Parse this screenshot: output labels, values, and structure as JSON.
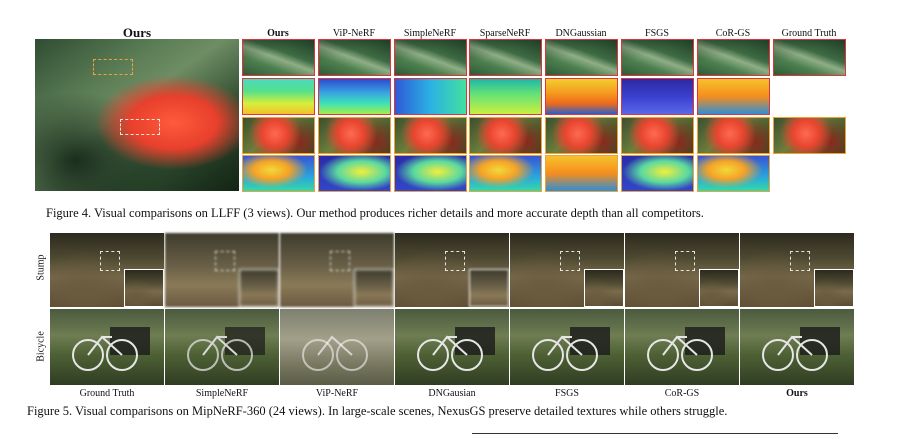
{
  "figure4": {
    "ours_large_label": "Ours",
    "columns": [
      "Ours",
      "ViP-NeRF",
      "SimpleNeRF",
      "SparseNeRF",
      "DNGaussian",
      "FSGS",
      "CoR-GS",
      "Ground Truth"
    ],
    "caption": "Figure 4. Visual comparisons on LLFF (3 views). Our method produces richer details and more accurate depth than all competitors."
  },
  "figure5": {
    "row_labels": [
      "Stump",
      "Bicycle"
    ],
    "columns": [
      "Ground Truth",
      "SimpleNeRF",
      "ViP-NeRF",
      "DNGausian",
      "FSGS",
      "CoR-GS",
      "Ours"
    ],
    "caption": "Figure 5. Visual comparisons on MipNeRF-360 (24 views). In large-scale scenes, NexusGS preserve detailed textures while others struggle."
  }
}
